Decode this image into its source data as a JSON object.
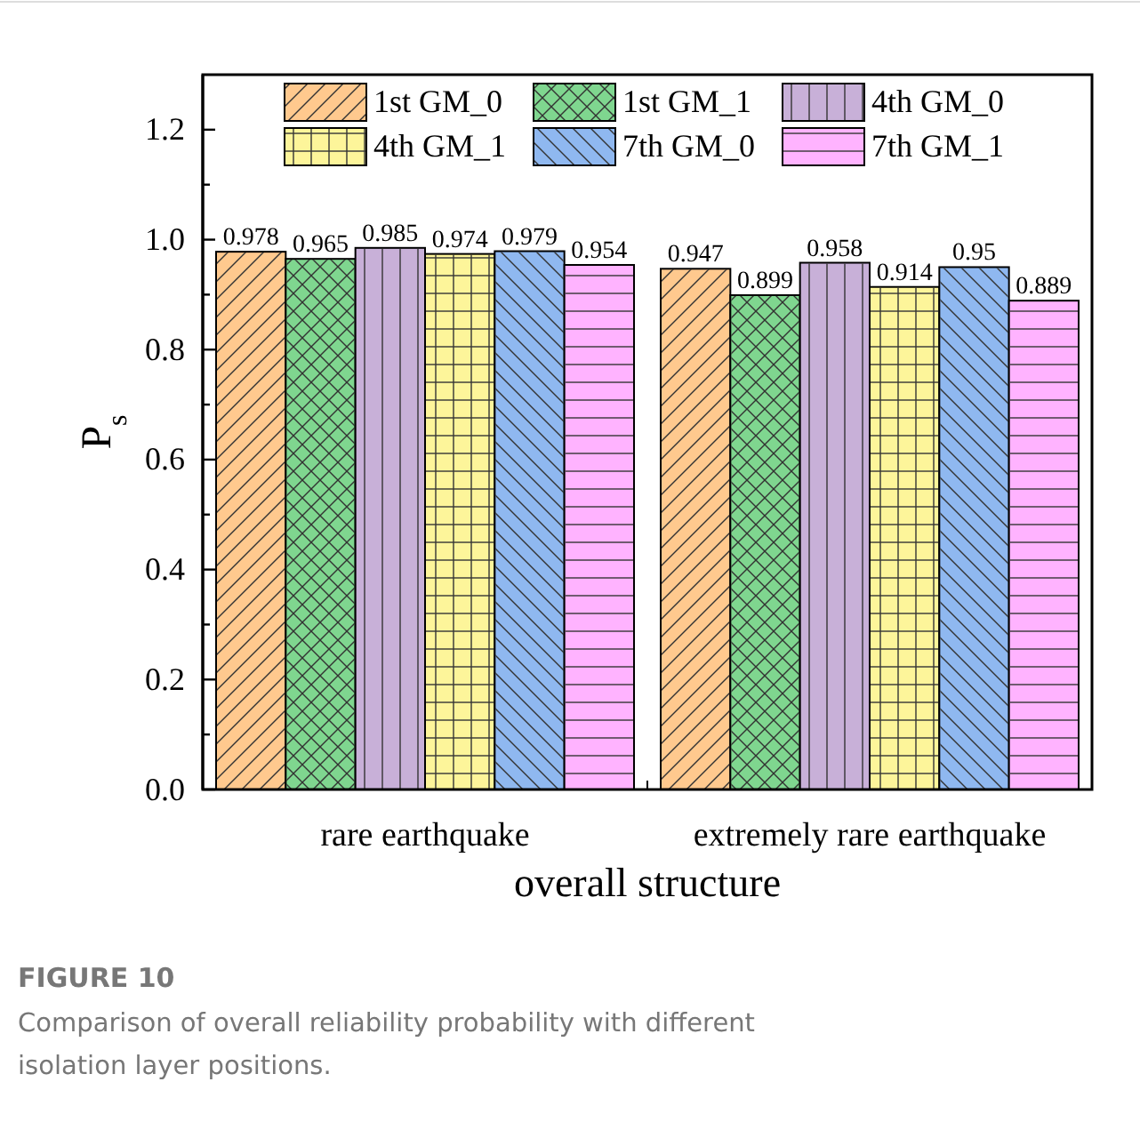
{
  "chart_data": {
    "type": "bar",
    "xlabel": "overall structure",
    "ylabel": "P$_{s}$",
    "categories": [
      "rare earthquake",
      "extremely rare earthquake"
    ],
    "series": [
      {
        "name": "1st GM_0",
        "color": "#ffc98e",
        "values": [
          0.978,
          0.947
        ]
      },
      {
        "name": "1st GM_1",
        "color": "#7fd68f",
        "values": [
          0.965,
          0.899
        ]
      },
      {
        "name": "4th GM_0",
        "color": "#c8b0d8",
        "values": [
          0.985,
          0.958
        ]
      },
      {
        "name": "4th GM_1",
        "color": "#fdf59a",
        "values": [
          0.974,
          0.914
        ]
      },
      {
        "name": "7th GM_0",
        "color": "#8fb8f0",
        "values": [
          0.979,
          0.95
        ]
      },
      {
        "name": "7th GM_1",
        "color": "#ffb3ff",
        "values": [
          0.954,
          0.889
        ]
      }
    ],
    "ylim": [
      0,
      1.3
    ],
    "yticks": [
      {
        "value": 0,
        "label": "0.0"
      },
      {
        "value": 0.1,
        "label": null
      },
      {
        "value": 0.2,
        "label": "0.2"
      },
      {
        "value": 0.3,
        "label": null
      },
      {
        "value": 0.4,
        "label": "0.4"
      },
      {
        "value": 0.5,
        "label": null
      },
      {
        "value": 0.6,
        "label": "0.6"
      },
      {
        "value": 0.7,
        "label": null
      },
      {
        "value": 0.8,
        "label": "0.8"
      },
      {
        "value": 0.9,
        "label": null
      },
      {
        "value": 1,
        "label": "1.0"
      },
      {
        "value": 1.1,
        "label": null
      },
      {
        "value": 1.2,
        "label": "1.2"
      }
    ],
    "data_labels": true,
    "legend": "top",
    "grid": false,
    "annotations": [
      "FIGURE 10",
      "Comparison of overall reliability probability with different isolation layer positions."
    ]
  }
}
